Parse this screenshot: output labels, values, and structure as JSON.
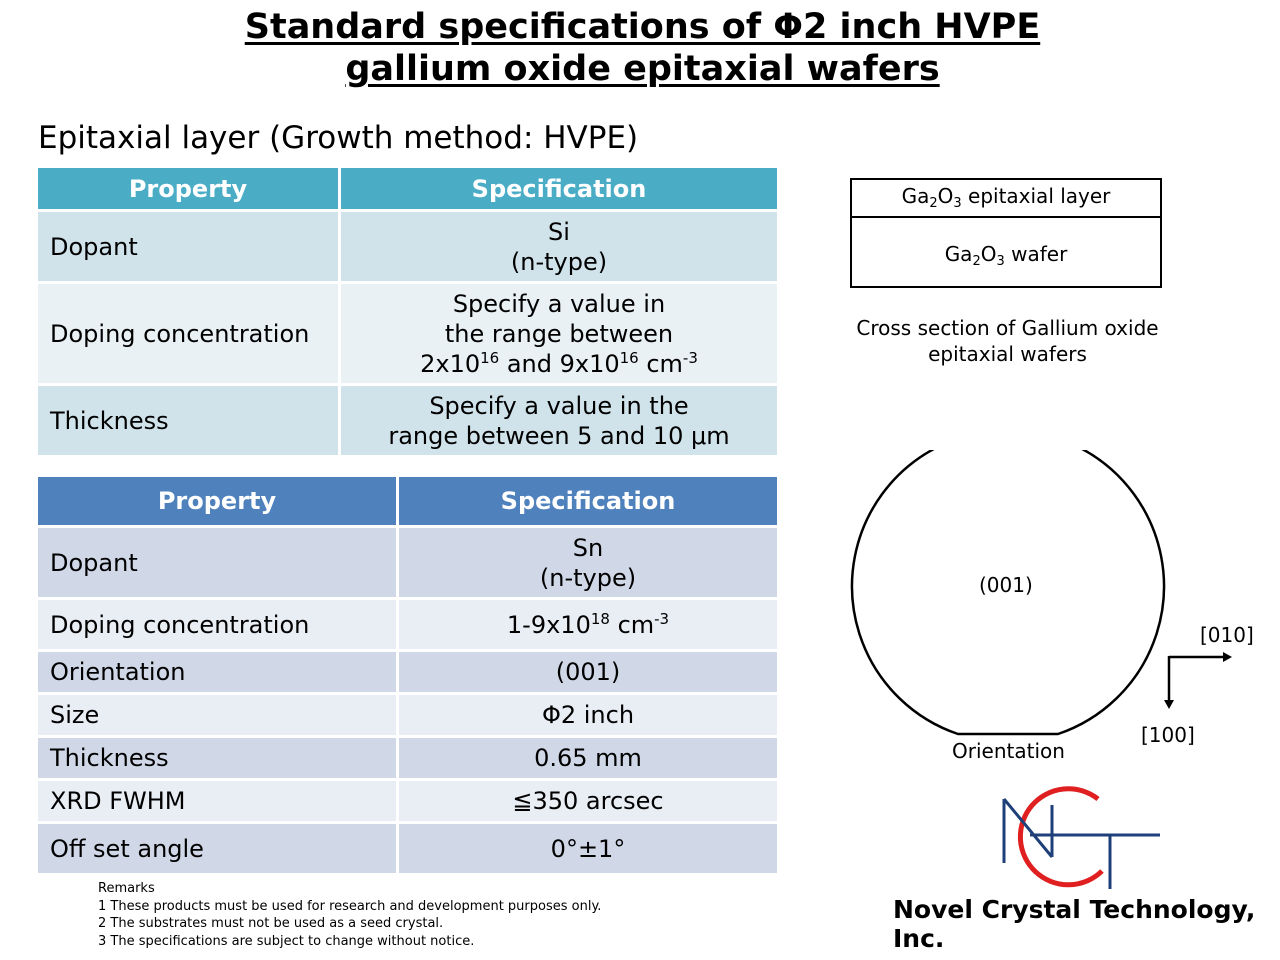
{
  "title": {
    "line1": "Standard specifications of Φ2 inch HVPE",
    "line2": "gallium oxide epitaxial wafers"
  },
  "epi_section": {
    "heading": "Epitaxial layer (Growth method: HVPE)",
    "header": {
      "property": "Property",
      "specification": "Specification"
    },
    "rows": [
      {
        "property": "Dopant",
        "spec_line1": "Si",
        "spec_line2": "(n-type)"
      },
      {
        "property": "Doping concentration",
        "spec_line1": "Specify a value in",
        "spec_line2": "the range between",
        "spec_line3_a": "2x10",
        "spec_line3_exp_a": "16",
        "spec_line3_b": " and 9x10",
        "spec_line3_exp_b": "16",
        "spec_line3_c": " cm",
        "spec_line3_exp_c": "-3"
      },
      {
        "property": "Thickness",
        "spec_line1": "Specify a value in the",
        "spec_line2": "range between 5 and 10 μm"
      }
    ]
  },
  "substrate_section": {
    "header": {
      "property": "Property",
      "specification": "Specification"
    },
    "rows": [
      {
        "property": "Dopant",
        "spec_line1": "Sn",
        "spec_line2": "(n-type)"
      },
      {
        "property": "Doping concentration",
        "spec_a": "1-9x10",
        "spec_exp_a": "18",
        "spec_b": " cm",
        "spec_exp_b": "-3"
      },
      {
        "property": "Orientation",
        "spec": "(001)"
      },
      {
        "property": "Size",
        "spec": "Φ2 inch"
      },
      {
        "property": "Thickness",
        "spec": "0.65 mm"
      },
      {
        "property": "XRD FWHM",
        "spec": "≦350 arcsec"
      },
      {
        "property": "Off set angle",
        "spec": "0°±1°"
      }
    ]
  },
  "cross_section": {
    "layer_top": {
      "a": "Ga",
      "sub1": "2",
      "b": "O",
      "sub2": "3",
      "c": " epitaxial layer"
    },
    "layer_bottom": {
      "a": "Ga",
      "sub1": "2",
      "b": "O",
      "sub2": "3",
      "c": " wafer"
    },
    "caption_line1": "Cross section of Gallium oxide",
    "caption_line2": "epitaxial wafers"
  },
  "wafer_diagram": {
    "center_label": "(001)",
    "flat_label": "Orientation",
    "axis_right": "[010]",
    "axis_down": "[100]"
  },
  "remarks": {
    "heading": "Remarks",
    "items": [
      "1 These products must be used for research and development purposes only.",
      "2 The substrates must not be used as a seed crystal.",
      "3 The specifications are subject to change without notice."
    ]
  },
  "logo": {
    "company": "Novel Crystal Technology, Inc.",
    "colors": {
      "n_color": "#1f3f7a",
      "ring_color": "#e02020",
      "t_color": "#1f3f7a"
    }
  }
}
